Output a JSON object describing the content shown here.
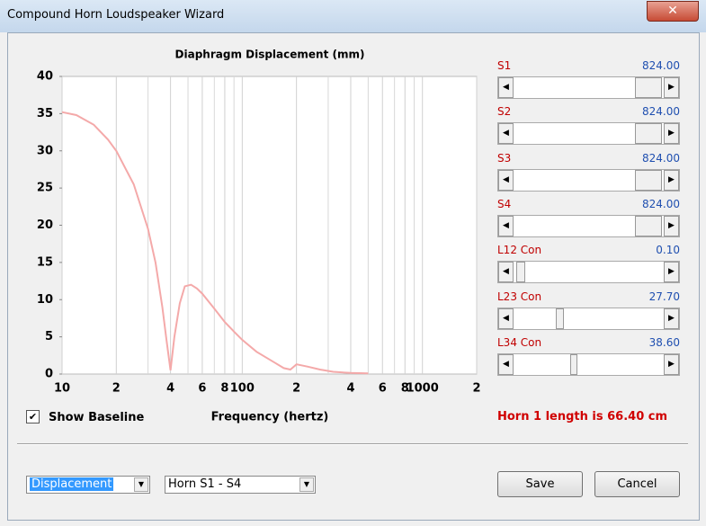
{
  "window": {
    "title": "Compound Horn Loudspeaker Wizard"
  },
  "chart_data": {
    "type": "line",
    "title": "Diaphragm Displacement (mm)",
    "x_label": "Frequency (hertz)",
    "x_log": true,
    "x_grid": true,
    "xlim": [
      10,
      2000
    ],
    "xticks": [
      10,
      {
        "value": 20,
        "label": "2"
      },
      {
        "value": 40,
        "label": "4"
      },
      {
        "value": 60,
        "label": "6"
      },
      {
        "value": 80,
        "label": "8"
      },
      100,
      {
        "value": 200,
        "label": "2"
      },
      {
        "value": 400,
        "label": "4"
      },
      {
        "value": 600,
        "label": "6"
      },
      {
        "value": 800,
        "label": "8"
      },
      1000,
      {
        "value": 2000,
        "label": "2"
      }
    ],
    "x_minor_ticks": [
      30,
      50,
      70,
      90,
      300,
      500,
      700,
      900
    ],
    "ylim": [
      0,
      40
    ],
    "yticks": [
      0,
      5,
      10,
      15,
      20,
      25,
      30,
      35,
      40
    ],
    "x": [
      10,
      12,
      15,
      18,
      20,
      25,
      30,
      33,
      36,
      38,
      40,
      42,
      45,
      48,
      52,
      56,
      60,
      70,
      80,
      90,
      100,
      120,
      150,
      170,
      185,
      200,
      230,
      270,
      320,
      400,
      500
    ],
    "series": [
      {
        "color": "#f4a9a9",
        "values": [
          35.2,
          34.8,
          33.5,
          31.5,
          30,
          25.5,
          19.5,
          15,
          9,
          4.5,
          0.5,
          5,
          9.5,
          11.8,
          12,
          11.5,
          10.8,
          8.8,
          7,
          5.7,
          4.6,
          3,
          1.6,
          0.8,
          0.6,
          1.3,
          1.0,
          0.6,
          0.3,
          0.15,
          0.1
        ]
      }
    ]
  },
  "sliders": [
    {
      "label": "S1",
      "value": "824.00"
    },
    {
      "label": "S2",
      "value": "824.00"
    },
    {
      "label": "S3",
      "value": "824.00"
    },
    {
      "label": "S4",
      "value": "824.00"
    },
    {
      "label": "L12 Con",
      "value": "0.10"
    },
    {
      "label": "L23 Con",
      "value": "27.70"
    },
    {
      "label": "L34 Con",
      "value": "38.60"
    }
  ],
  "baseline_checkbox": {
    "label": "Show Baseline"
  },
  "status": "Horn 1 length is 66.40 cm",
  "dropdowns": [
    "Displacement",
    "Horn S1 - S4"
  ],
  "buttons": [
    "Save",
    "Cancel"
  ]
}
